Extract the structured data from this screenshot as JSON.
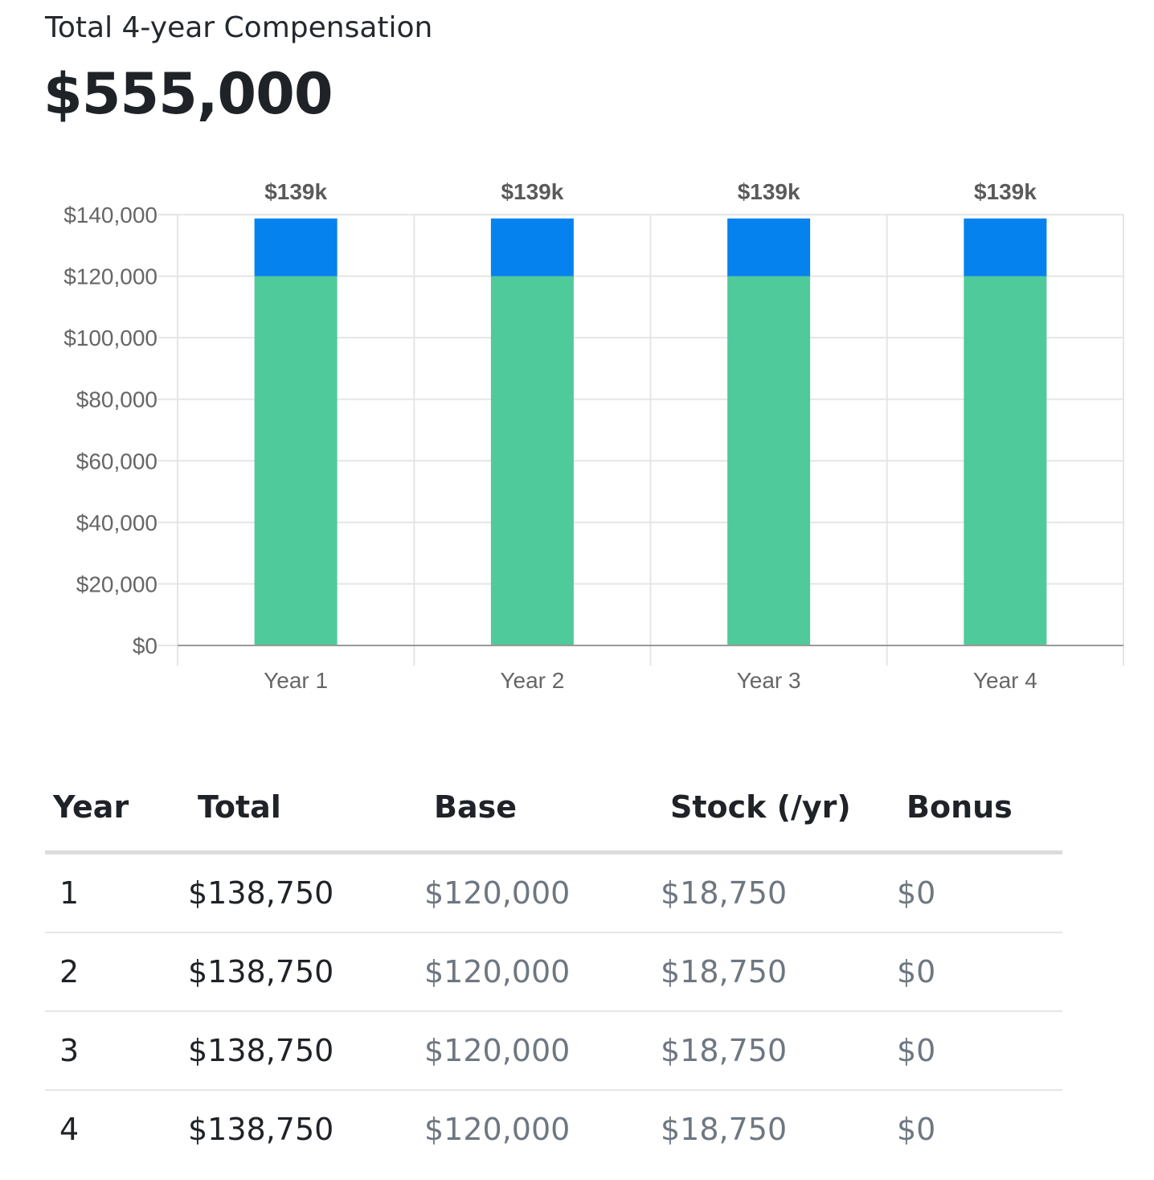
{
  "header": {
    "label": "Total 4-year Compensation",
    "total": "$555,000"
  },
  "colors": {
    "base": "#4fca9b",
    "stock": "#0582ee",
    "grid": "#e5e5e5",
    "axis": "#999999"
  },
  "chart_data": {
    "type": "bar",
    "stacked": true,
    "categories": [
      "Year 1",
      "Year 2",
      "Year 3",
      "Year 4"
    ],
    "series": [
      {
        "values": [
          120000,
          120000,
          120000,
          120000
        ],
        "color": "#4fca9b"
      },
      {
        "values": [
          18750,
          18750,
          18750,
          18750
        ],
        "color": "#0582ee"
      }
    ],
    "bar_labels": [
      "$139k",
      "$139k",
      "$139k",
      "$139k"
    ],
    "y_ticks": [
      0,
      20000,
      40000,
      60000,
      80000,
      100000,
      120000,
      140000
    ],
    "y_tick_labels": [
      "$0",
      "$20,000",
      "$40,000",
      "$60,000",
      "$80,000",
      "$100,000",
      "$120,000",
      "$140,000"
    ],
    "ylim": [
      0,
      140000
    ],
    "grid": true,
    "legend": "none",
    "title": "",
    "xlabel": "",
    "ylabel": ""
  },
  "table": {
    "headers": [
      "Year",
      "Total",
      "Base",
      "Stock (/yr)",
      "Bonus"
    ],
    "rows": [
      [
        "1",
        "$138,750",
        "$120,000",
        "$18,750",
        "$0"
      ],
      [
        "2",
        "$138,750",
        "$120,000",
        "$18,750",
        "$0"
      ],
      [
        "3",
        "$138,750",
        "$120,000",
        "$18,750",
        "$0"
      ],
      [
        "4",
        "$138,750",
        "$120,000",
        "$18,750",
        "$0"
      ]
    ]
  }
}
